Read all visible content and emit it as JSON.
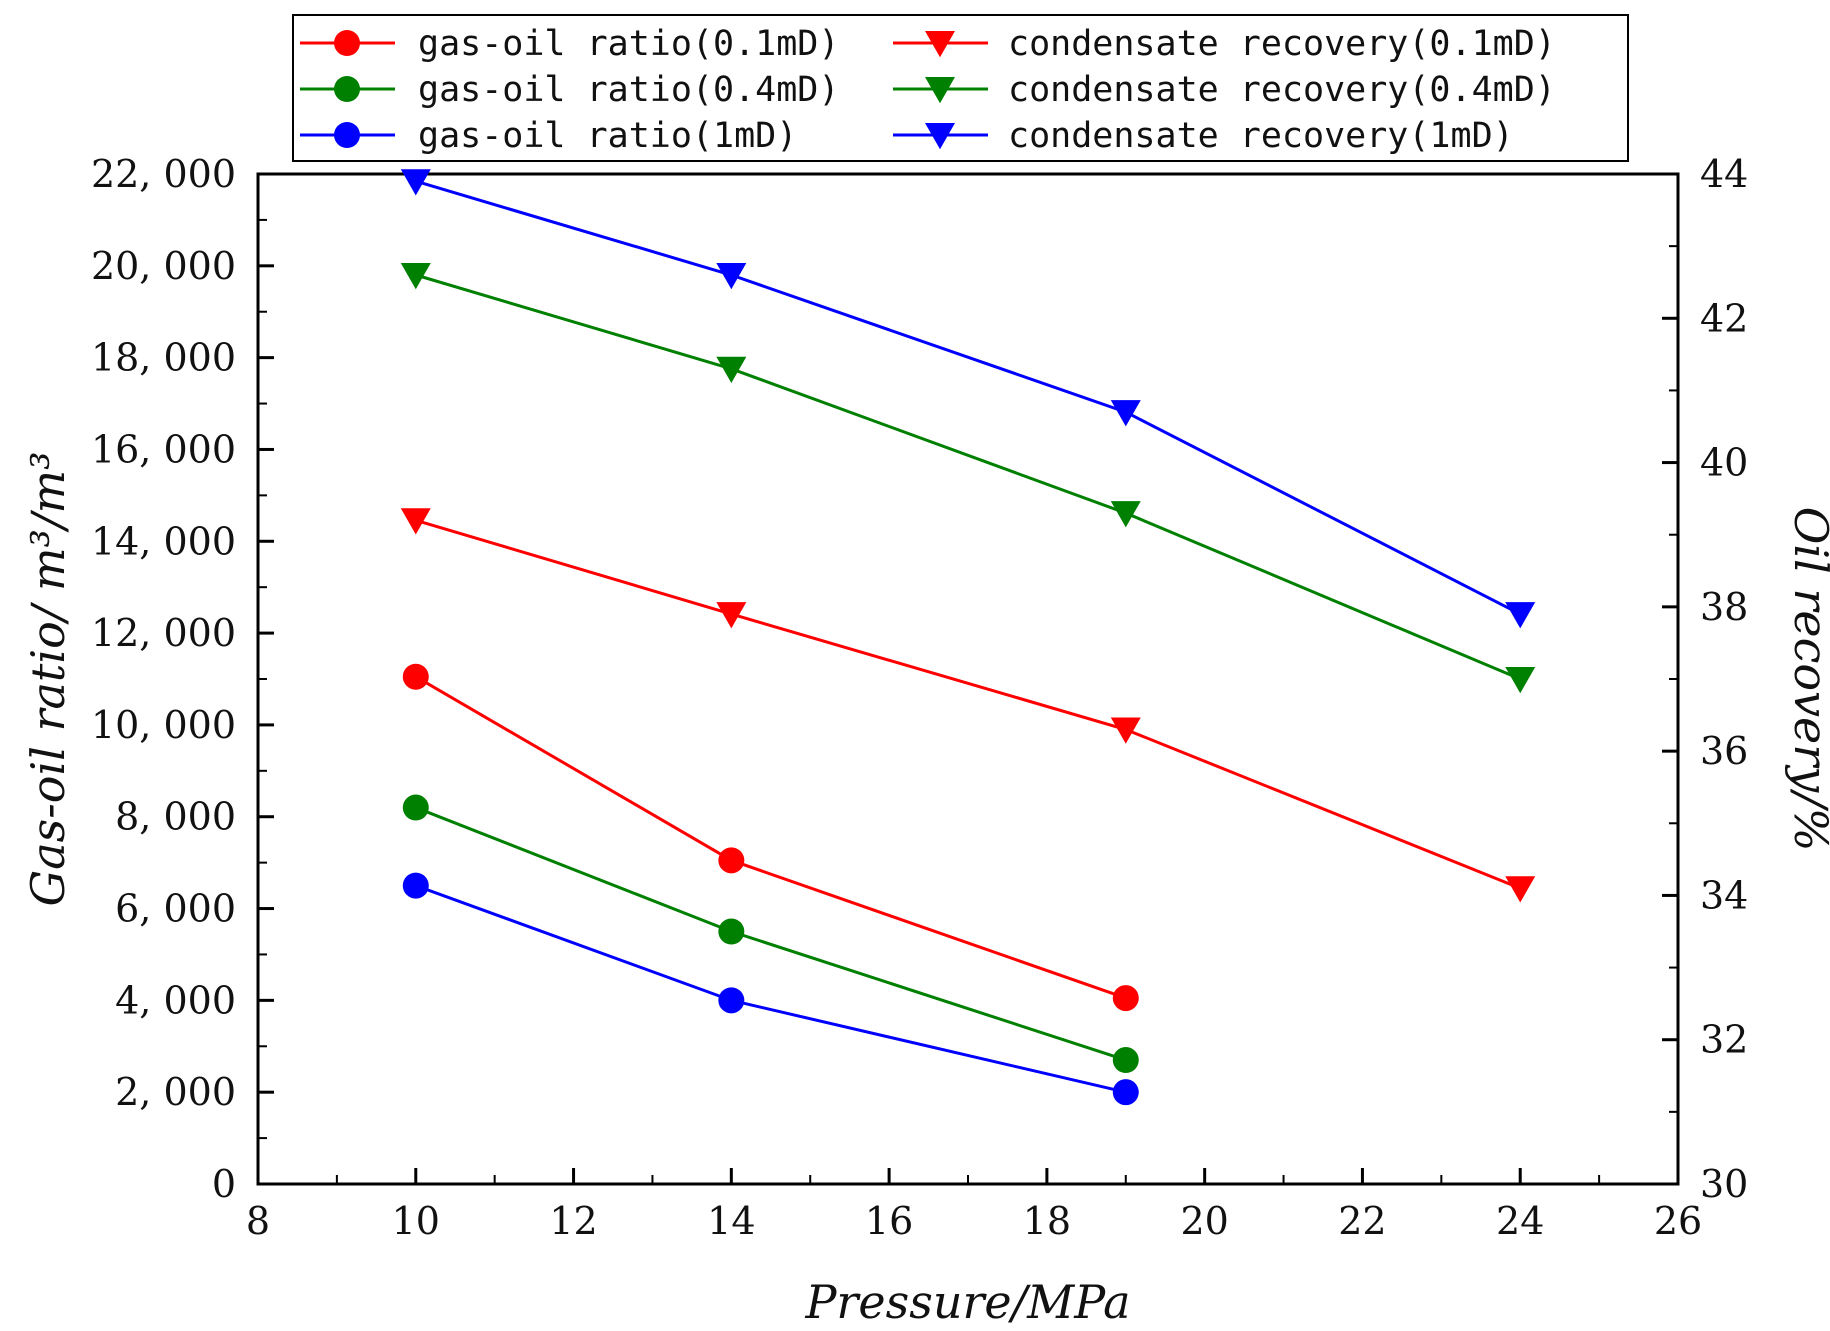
{
  "chart_data": {
    "type": "line",
    "xlabel": "Pressure/MPa",
    "ylabel_left": "Gas-oil ratio/ m³/m³",
    "ylabel_right": "Oil recovery/%",
    "xlim": [
      8,
      26
    ],
    "ylim_left": [
      0,
      22000
    ],
    "ylim_right": [
      30,
      44
    ],
    "x_ticks": [
      "8",
      "10",
      "12",
      "14",
      "16",
      "18",
      "20",
      "22",
      "24",
      "26"
    ],
    "y_left_ticks": [
      "0",
      "2, 000",
      "4, 000",
      "6, 000",
      "8, 000",
      "10, 000",
      "12, 000",
      "14, 000",
      "16, 000",
      "18, 000",
      "20, 000",
      "22, 000"
    ],
    "y_right_ticks": [
      "30",
      "32",
      "34",
      "36",
      "38",
      "40",
      "42",
      "44"
    ],
    "grid": false,
    "legend_position": "top",
    "series": [
      {
        "name": "gas-oil ratio(0.1mD)",
        "axis": "left",
        "marker": "circle",
        "color": "#ff0000",
        "x": [
          10,
          14,
          19
        ],
        "y": [
          11050,
          7050,
          4050
        ]
      },
      {
        "name": "gas-oil ratio(0.4mD)",
        "axis": "left",
        "marker": "circle",
        "color": "#008000",
        "x": [
          10,
          14,
          19
        ],
        "y": [
          8200,
          5500,
          2700
        ]
      },
      {
        "name": "gas-oil ratio(1mD)",
        "axis": "left",
        "marker": "circle",
        "color": "#0000ff",
        "x": [
          10,
          14,
          19
        ],
        "y": [
          6500,
          4000,
          2000
        ]
      },
      {
        "name": "condensate recovery(0.1mD)",
        "axis": "right",
        "marker": "triangle-down",
        "color": "#ff0000",
        "x": [
          10,
          14,
          19,
          24
        ],
        "y": [
          39.2,
          37.9,
          36.3,
          34.1
        ]
      },
      {
        "name": "condensate recovery(0.4mD)",
        "axis": "right",
        "marker": "triangle-down",
        "color": "#008000",
        "x": [
          10,
          14,
          19,
          24
        ],
        "y": [
          42.6,
          41.3,
          39.3,
          37.0
        ]
      },
      {
        "name": "condensate recovery(1mD)",
        "axis": "right",
        "marker": "triangle-down",
        "color": "#0000ff",
        "x": [
          10,
          14,
          19,
          24
        ],
        "y": [
          43.9,
          42.6,
          40.7,
          37.9
        ]
      }
    ]
  }
}
